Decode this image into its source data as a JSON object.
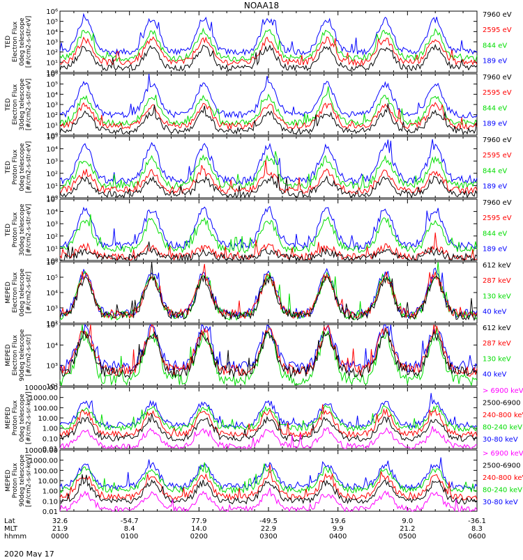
{
  "title": "NOAA18",
  "date_label": "2020 May 17",
  "colors": {
    "blue": "#0000ff",
    "red": "#ff0000",
    "green": "#00dd00",
    "black": "#000000",
    "magenta": "#ff00ff"
  },
  "chart_data": {
    "type": "line",
    "x_ticks": [
      "0000",
      "0100",
      "0200",
      "0300",
      "0400",
      "0500",
      "0600"
    ],
    "ephemeris": {
      "labels": [
        "Lat",
        "MLT",
        "hhmm"
      ],
      "lat": [
        "32.6",
        "-54.7",
        "77.9",
        "-49.5",
        "19.6",
        "9.0",
        "-36.1"
      ],
      "mlt": [
        "21.9",
        "8.4",
        "14.0",
        "22.9",
        "9.9",
        "21.2",
        "8.3"
      ],
      "hhmm": [
        "0000",
        "0100",
        "0200",
        "0300",
        "0400",
        "0500",
        "0600"
      ]
    },
    "panels": [
      {
        "ylabel": [
          "TED",
          "Electron Flux",
          "0deg telescope",
          "[#/cm2-s-str-eV]"
        ],
        "yticks": [
          "10⁶",
          "10⁵",
          "10⁴",
          "10³",
          "10²",
          "10¹",
          "10⁰"
        ],
        "ymin": 0,
        "ymax": 6,
        "legend": [
          {
            "text": "7960 eV",
            "color": "#000000"
          },
          {
            "text": "2595 eV",
            "color": "#ff0000"
          },
          {
            "text": "844 eV",
            "color": "#00dd00"
          },
          {
            "text": "189 eV",
            "color": "#0000ff"
          }
        ],
        "series": [
          {
            "color": "#0000ff",
            "base": 2.0,
            "amp": 3.2
          },
          {
            "color": "#00dd00",
            "base": 1.4,
            "amp": 2.6
          },
          {
            "color": "#ff0000",
            "base": 1.0,
            "amp": 2.2
          },
          {
            "color": "#000000",
            "base": 0.4,
            "amp": 2.0
          }
        ]
      },
      {
        "ylabel": [
          "TED",
          "Electron Flux",
          "30deg telescope",
          "[#/cm2-s-str-eV]"
        ],
        "yticks": [
          "10⁶",
          "10⁵",
          "10⁴",
          "10³",
          "10²",
          "10¹",
          "10⁰"
        ],
        "ymin": 0,
        "ymax": 6,
        "legend": [
          {
            "text": "7960 eV",
            "color": "#000000"
          },
          {
            "text": "2595 eV",
            "color": "#ff0000"
          },
          {
            "text": "844 eV",
            "color": "#00dd00"
          },
          {
            "text": "189 eV",
            "color": "#0000ff"
          }
        ],
        "series": [
          {
            "color": "#0000ff",
            "base": 2.0,
            "amp": 3.0
          },
          {
            "color": "#00dd00",
            "base": 1.2,
            "amp": 2.5
          },
          {
            "color": "#ff0000",
            "base": 0.9,
            "amp": 2.0
          },
          {
            "color": "#000000",
            "base": 0.4,
            "amp": 1.8
          }
        ]
      },
      {
        "ylabel": [
          "TED",
          "Proton Flux",
          "0deg telescope",
          "[#/cm2-s-str-eV]"
        ],
        "yticks": [
          "10⁵",
          "10⁴",
          "10³",
          "10²",
          "10¹",
          "10⁰"
        ],
        "ymin": 0,
        "ymax": 5,
        "legend": [
          {
            "text": "7960 eV",
            "color": "#000000"
          },
          {
            "text": "2595 eV",
            "color": "#ff0000"
          },
          {
            "text": "844 eV",
            "color": "#00dd00"
          },
          {
            "text": "189 eV",
            "color": "#0000ff"
          }
        ],
        "series": [
          {
            "color": "#0000ff",
            "base": 1.4,
            "amp": 2.8
          },
          {
            "color": "#00dd00",
            "base": 1.0,
            "amp": 2.2
          },
          {
            "color": "#ff0000",
            "base": 0.6,
            "amp": 1.5
          },
          {
            "color": "#000000",
            "base": 0.3,
            "amp": 1.2
          }
        ]
      },
      {
        "ylabel": [
          "TED",
          "Proton Flux",
          "30deg telescope",
          "[#/cm2-s-str-eV]"
        ],
        "yticks": [
          "10⁵",
          "10⁴",
          "10³",
          "10²",
          "10¹",
          "10⁰"
        ],
        "ymin": 0,
        "ymax": 5,
        "legend": [
          {
            "text": "7960 eV",
            "color": "#000000"
          },
          {
            "text": "2595 eV",
            "color": "#ff0000"
          },
          {
            "text": "844 eV",
            "color": "#00dd00"
          },
          {
            "text": "189 eV",
            "color": "#0000ff"
          }
        ],
        "series": [
          {
            "color": "#0000ff",
            "base": 1.2,
            "amp": 3.0
          },
          {
            "color": "#00dd00",
            "base": 0.9,
            "amp": 2.4
          },
          {
            "color": "#ff0000",
            "base": 0.3,
            "amp": 0.8
          },
          {
            "color": "#000000",
            "base": 0.2,
            "amp": 0.5
          }
        ]
      },
      {
        "ylabel": [
          "MEPED",
          "Electron Flux",
          "0deg telescope",
          "[#/cm2-s-str]"
        ],
        "yticks": [
          "10⁶",
          "10⁵",
          "10⁴",
          "10³",
          "10²"
        ],
        "ymin": 2,
        "ymax": 6,
        "legend": [
          {
            "text": "612 keV",
            "color": "#000000"
          },
          {
            "text": "287 keV",
            "color": "#ff0000"
          },
          {
            "text": "130 keV",
            "color": "#00dd00"
          },
          {
            "text": "40 keV",
            "color": "#0000ff"
          }
        ],
        "series": [
          {
            "color": "#0000ff",
            "base": 2.6,
            "amp": 2.7
          },
          {
            "color": "#00dd00",
            "base": 2.5,
            "amp": 2.6
          },
          {
            "color": "#ff0000",
            "base": 2.6,
            "amp": 2.5
          },
          {
            "color": "#000000",
            "base": 2.5,
            "amp": 2.4
          }
        ]
      },
      {
        "ylabel": [
          "MEPED",
          "Electron Flux",
          "90deg telescope",
          "[#/cm2-s-str]"
        ],
        "yticks": [
          "10⁵",
          "10⁴",
          "10³",
          "10²"
        ],
        "ymin": 1.8,
        "ymax": 5,
        "legend": [
          {
            "text": "612 keV",
            "color": "#000000"
          },
          {
            "text": "287 keV",
            "color": "#ff0000"
          },
          {
            "text": "130 keV",
            "color": "#00dd00"
          },
          {
            "text": "40 keV",
            "color": "#0000ff"
          }
        ],
        "series": [
          {
            "color": "#0000ff",
            "base": 2.8,
            "amp": 2.0
          },
          {
            "color": "#00dd00",
            "base": 2.1,
            "amp": 2.4
          },
          {
            "color": "#ff0000",
            "base": 2.6,
            "amp": 2.1
          },
          {
            "color": "#000000",
            "base": 2.5,
            "amp": 2.0
          }
        ]
      },
      {
        "ylabel": [
          "MEPED",
          "Proton Flux",
          "0deg telescope",
          "[#/cm2-s-sr-keV]"
        ],
        "yticks": [
          "10000.00",
          "1000.00",
          "100.00",
          "10.00",
          "1.00",
          "0.10",
          "0.01"
        ],
        "ymin": -2,
        "ymax": 4,
        "legend": [
          {
            "text": "> 6900 keV",
            "color": "#ff00ff"
          },
          {
            "text": "2500-6900",
            "color": "#000000"
          },
          {
            "text": "240-800 keV",
            "color": "#ff0000"
          },
          {
            "text": "80-240 keV",
            "color": "#00dd00"
          },
          {
            "text": "30-80 keV",
            "color": "#0000ff"
          }
        ],
        "series": [
          {
            "color": "#0000ff",
            "base": 0.3,
            "amp": 2.2
          },
          {
            "color": "#00dd00",
            "base": 0.0,
            "amp": 2.0
          },
          {
            "color": "#ff0000",
            "base": -0.6,
            "amp": 2.2
          },
          {
            "color": "#000000",
            "base": -1.0,
            "amp": 1.9
          },
          {
            "color": "#ff00ff",
            "base": -1.8,
            "amp": 1.6
          }
        ]
      },
      {
        "ylabel": [
          "MEPED",
          "Proton Flux",
          "90deg telescope",
          "[#/cm2-s-sr-keV]"
        ],
        "yticks": [
          "10000.00",
          "1000.00",
          "100.00",
          "10.00",
          "1.00",
          "0.10",
          "0.01"
        ],
        "ymin": -2,
        "ymax": 4,
        "legend": [
          {
            "text": "> 6900 keV",
            "color": "#ff00ff"
          },
          {
            "text": "2500-6900",
            "color": "#000000"
          },
          {
            "text": "240-800 keV",
            "color": "#ff0000"
          },
          {
            "text": "80-240 keV",
            "color": "#00dd00"
          },
          {
            "text": "30-80 keV",
            "color": "#0000ff"
          }
        ],
        "series": [
          {
            "color": "#0000ff",
            "base": 0.4,
            "amp": 2.1
          },
          {
            "color": "#00dd00",
            "base": 0.1,
            "amp": 2.0
          },
          {
            "color": "#ff0000",
            "base": -0.6,
            "amp": 2.0
          },
          {
            "color": "#000000",
            "base": -1.0,
            "amp": 1.8
          },
          {
            "color": "#ff00ff",
            "base": -1.8,
            "amp": 1.5
          }
        ]
      }
    ]
  }
}
